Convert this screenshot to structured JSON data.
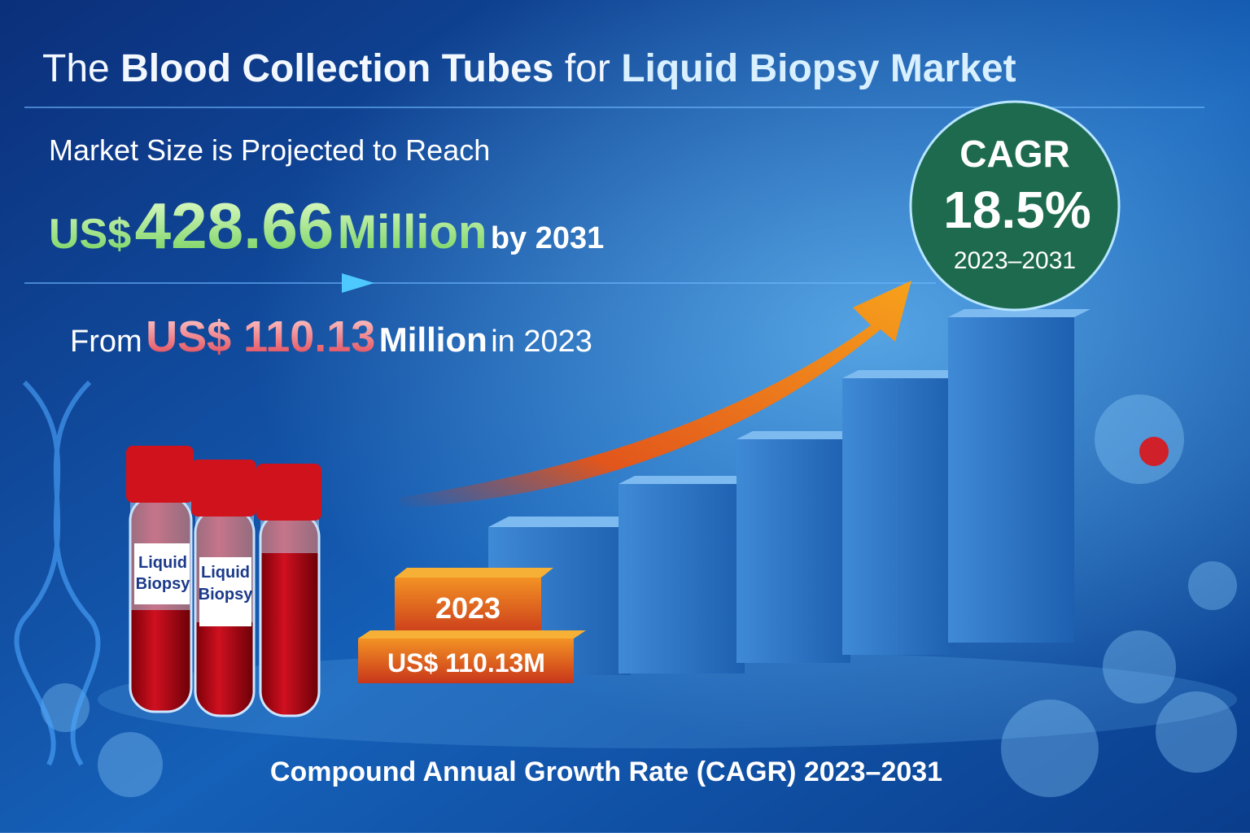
{
  "header": {
    "title": {
      "pre": "The",
      "bold1": "Blood Collection Tubes",
      "mid": "for",
      "bold2": "Liquid Biopsy Market"
    }
  },
  "projection": {
    "lead": "Market Size is Projected to Reach",
    "currency": "US$",
    "amount": "428.66",
    "unit": "Million",
    "suffix": "by 2031",
    "from_prefix": "From",
    "from_amount": "US$ 110.13",
    "from_unit": "Million",
    "from_suffix": "in 2023"
  },
  "cagr_badge": {
    "label": "CAGR",
    "value": "18.5%",
    "period": "2023–2031"
  },
  "tubes": [
    {
      "label": [
        "Liquid",
        "Biopsy"
      ]
    },
    {
      "label": [
        "Liquid",
        "Biopsy"
      ]
    }
  ],
  "base_block": {
    "year": "2023",
    "value": "US$ 110.13M"
  },
  "footer": "Compound Annual Growth Rate (CAGR) 2023–2031"
}
